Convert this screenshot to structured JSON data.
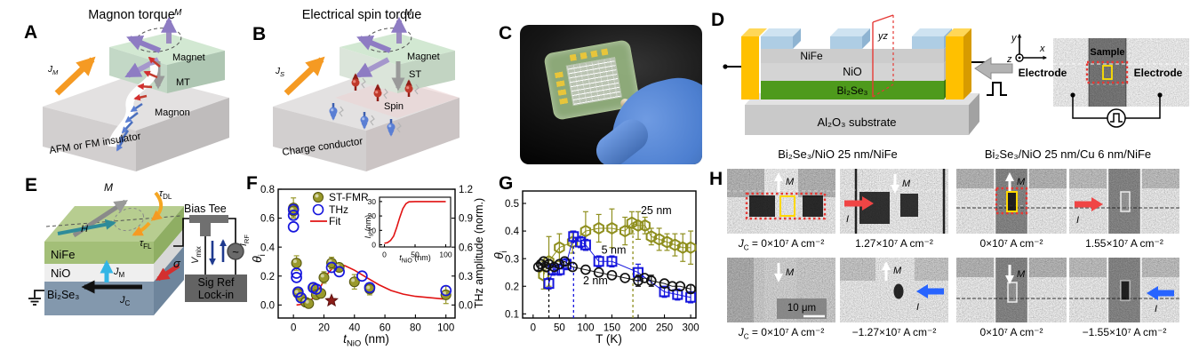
{
  "a": {
    "label": "A",
    "title": "Magnon torque",
    "current": {
      "main": "J",
      "sub": "M"
    },
    "m": "M",
    "magnet": "Magnet",
    "torque": "MT",
    "carrier": "Magnon",
    "base": "AFM or FM insulator"
  },
  "b": {
    "label": "B",
    "title": "Electrical spin torque",
    "current": {
      "main": "J",
      "sub": "S"
    },
    "m": "M",
    "magnet": "Magnet",
    "torque": "ST",
    "carrier": "Spin",
    "base": "Charge conductor"
  },
  "c": {
    "label": "C"
  },
  "d": {
    "label": "D",
    "nife": "NiFe",
    "nio": "NiO",
    "bise": "Bi₂Se₃",
    "substrate": "Al₂O₃ substrate",
    "plane": "yz",
    "axes": {
      "x": "x",
      "y": "y",
      "z": "z"
    },
    "sem": {
      "sample": "Sample",
      "electrode_left": "Electrode",
      "electrode_right": "Electrode"
    }
  },
  "e": {
    "label": "E",
    "layers": [
      "NiFe",
      "NiO",
      "Bi₂Se₃"
    ],
    "m": "M",
    "h": "H",
    "tau_dl": {
      "main": "τ",
      "sub": "DL"
    },
    "tau_fl": {
      "main": "τ",
      "sub": "FL"
    },
    "jm": {
      "main": "J",
      "sub": "M"
    },
    "jc": {
      "main": "J",
      "sub": "C"
    },
    "sigma": "σ",
    "bias_tee": "Bias Tee",
    "vmix": {
      "main": "V",
      "sub": "mix"
    },
    "irf": {
      "main": "I",
      "sub": "RF"
    },
    "lockin_line1": "Sig Ref",
    "lockin_line2": "Lock-in",
    "ac_source": "~"
  },
  "f": {
    "label": "F",
    "xlabel": {
      "main": "t",
      "sub": "NiO",
      "unit": " (nm)"
    },
    "ylabel": {
      "main": "θ",
      "sub": "i"
    },
    "y2label": "THz amplitude (norm.)",
    "inset": {
      "xlabel": {
        "main": "t",
        "sub": "NiO",
        "unit": " (nm)"
      },
      "ylabel": {
        "main": "l",
        "sub": "s",
        "unit": " (nm)"
      }
    }
  },
  "g": {
    "label": "G",
    "xlabel": "T (K)",
    "ylabel": {
      "main": "θ",
      "sub": "i"
    }
  },
  "h": {
    "label": "H",
    "m_label": "M",
    "i_label": "I",
    "scalebar": "10 μm",
    "left": {
      "header": "Bi₂Se₃/NiO 25 nm/NiFe",
      "captions": [
        {
          "prefix_main": "J",
          "prefix_sub": "C",
          "eq": " = ",
          "value": "0×10⁷ A cm⁻²"
        },
        {
          "value": "1.27×10⁷ A cm⁻²"
        },
        {
          "prefix_main": "J",
          "prefix_sub": "C",
          "eq": " = ",
          "value": "0×10⁷ A cm⁻²"
        },
        {
          "value": "−1.27×10⁷ A cm⁻²"
        }
      ]
    },
    "right": {
      "header": "Bi₂Se₃/NiO 25 nm/Cu 6 nm/NiFe",
      "captions": [
        {
          "value": "0×10⁷ A cm⁻²"
        },
        {
          "value": "1.55×10⁷ A cm⁻²"
        },
        {
          "value": "0×10⁷ A cm⁻²"
        },
        {
          "value": "−1.55×10⁷ A cm⁻²"
        }
      ]
    }
  },
  "chart_data": [
    {
      "id": "F",
      "type": "scatter",
      "title": "",
      "xlabel": "t_NiO (nm)",
      "ylabel": "theta_i",
      "y2label": "THz amplitude (norm.)",
      "xlim": [
        -10,
        106
      ],
      "ylim": [
        -0.09,
        0.8
      ],
      "y2lim": [
        -0.135,
        1.2
      ],
      "xticks": [
        0,
        20,
        40,
        60,
        80,
        100
      ],
      "yticks": [
        0.0,
        0.2,
        0.4,
        0.6,
        0.8
      ],
      "y2ticks": [
        0.0,
        0.3,
        0.6,
        0.9,
        1.2
      ],
      "legend_position": "top-left",
      "grid": false,
      "series": [
        {
          "name": "ST-FMR",
          "marker": "circle-filled",
          "color": "#99992b",
          "points": [
            [
              0,
              0.67,
              0.07
            ],
            [
              0,
              0.65,
              0.04
            ],
            [
              2,
              0.29,
              0.05
            ],
            [
              3,
              0.08,
              0.03
            ],
            [
              5,
              0.05,
              0.02
            ],
            [
              8,
              0.02,
              0.02
            ],
            [
              10,
              0.01,
              0.02
            ],
            [
              13,
              0.12,
              0.03
            ],
            [
              15,
              0.07,
              0.02
            ],
            [
              18,
              0.08,
              0.03
            ],
            [
              20,
              0.19,
              0.04
            ],
            [
              25,
              0.29,
              0.04
            ],
            [
              30,
              0.26,
              0.03
            ],
            [
              40,
              0.16,
              0.05
            ],
            [
              50,
              0.11,
              0.04
            ],
            [
              100,
              0.07,
              0.06
            ]
          ]
        },
        {
          "name": "THz",
          "marker": "circle-open",
          "color": "#1616dd",
          "points": [
            [
              0,
              0.66
            ],
            [
              0,
              0.62
            ],
            [
              0,
              0.54
            ],
            [
              2,
              0.22
            ],
            [
              2,
              0.19
            ],
            [
              3,
              0.09
            ],
            [
              5,
              0.05
            ],
            [
              13,
              0.12
            ],
            [
              15,
              0.11
            ],
            [
              25,
              0.26
            ],
            [
              30,
              0.23
            ],
            [
              45,
              0.2
            ],
            [
              50,
              0.12
            ],
            [
              100,
              0.1
            ]
          ]
        },
        {
          "name": "Fit",
          "marker": "line",
          "color": "#e11212",
          "points": [
            [
              2,
              0.0
            ],
            [
              6,
              0.005
            ],
            [
              10,
              0.02
            ],
            [
              14,
              0.06
            ],
            [
              18,
              0.13
            ],
            [
              22,
              0.21
            ],
            [
              26,
              0.26
            ],
            [
              30,
              0.28
            ],
            [
              34,
              0.27
            ],
            [
              40,
              0.24
            ],
            [
              48,
              0.19
            ],
            [
              56,
              0.14
            ],
            [
              64,
              0.1
            ],
            [
              72,
              0.075
            ],
            [
              80,
              0.06
            ],
            [
              90,
              0.05
            ],
            [
              100,
              0.04
            ]
          ]
        },
        {
          "name": "star",
          "marker": "star",
          "color": "#8c1d18",
          "points": [
            [
              25,
              0.03
            ]
          ]
        }
      ]
    },
    {
      "id": "F-inset",
      "type": "line",
      "xlabel": "t_NiO (nm)",
      "ylabel": "l_s (nm)",
      "xlim": [
        -8,
        108
      ],
      "ylim": [
        -1.5,
        33
      ],
      "xticks": [
        0,
        50,
        100
      ],
      "yticks": [
        0,
        10,
        20,
        30
      ],
      "grid": false,
      "series": [
        {
          "name": "spin diffusion length",
          "marker": "line",
          "color": "#e11212",
          "points": [
            [
              0,
              1
            ],
            [
              5,
              1.5
            ],
            [
              10,
              3
            ],
            [
              15,
              6
            ],
            [
              20,
              12
            ],
            [
              25,
              19
            ],
            [
              30,
              25
            ],
            [
              35,
              28.5
            ],
            [
              40,
              29.8
            ],
            [
              50,
              30
            ],
            [
              60,
              30
            ],
            [
              80,
              30
            ],
            [
              100,
              30
            ]
          ]
        }
      ]
    },
    {
      "id": "G",
      "type": "scatter-line",
      "xlabel": "T (K)",
      "ylabel": "theta_i",
      "xlim": [
        -20,
        310
      ],
      "ylim": [
        0.085,
        0.545
      ],
      "xticks": [
        0,
        50,
        100,
        150,
        200,
        250,
        300
      ],
      "yticks": [
        0.1,
        0.2,
        0.3,
        0.4,
        0.5
      ],
      "grid": false,
      "series": [
        {
          "name": "25 nm",
          "marker": "hexagon-open",
          "color": "#8f8f1e",
          "label_xy": [
            205,
            0.462
          ],
          "dash_x": 190,
          "dash_y": 0.43,
          "points": [
            [
              20,
              0.24,
              0.05
            ],
            [
              30,
              0.29,
              0.09
            ],
            [
              50,
              0.34,
              0.05
            ],
            [
              75,
              0.36,
              0.04
            ],
            [
              100,
              0.4,
              0.07
            ],
            [
              125,
              0.41,
              0.05
            ],
            [
              150,
              0.41,
              0.07
            ],
            [
              175,
              0.4,
              0.05
            ],
            [
              188,
              0.43,
              0.04
            ],
            [
              200,
              0.42,
              0.05
            ],
            [
              213,
              0.42,
              0.03
            ],
            [
              225,
              0.38,
              0.03
            ],
            [
              240,
              0.37,
              0.04
            ],
            [
              255,
              0.36,
              0.03
            ],
            [
              270,
              0.35,
              0.04
            ],
            [
              285,
              0.34,
              0.05
            ],
            [
              300,
              0.34,
              0.06
            ]
          ]
        },
        {
          "name": "5 nm",
          "marker": "square-open",
          "color": "#1616dd",
          "label_xy": [
            130,
            0.318
          ],
          "dash_x": 77,
          "dash_y": 0.38,
          "points": [
            [
              30,
              0.21,
              0.02
            ],
            [
              38,
              0.26,
              0.02
            ],
            [
              50,
              0.26,
              0.02
            ],
            [
              63,
              0.28,
              0.02
            ],
            [
              77,
              0.38,
              0.02
            ],
            [
              90,
              0.36,
              0.02
            ],
            [
              100,
              0.35,
              0.02
            ],
            [
              125,
              0.29,
              0.02
            ],
            [
              150,
              0.29,
              0.02
            ],
            [
              200,
              0.25,
              0.03
            ],
            [
              250,
              0.18,
              0.02
            ],
            [
              275,
              0.17,
              0.02
            ],
            [
              300,
              0.16,
              0.02
            ]
          ]
        },
        {
          "name": "2 nm",
          "marker": "circle-open",
          "color": "#111111",
          "label_xy": [
            95,
            0.207
          ],
          "dash_x": 30,
          "dash_y": 0.28,
          "points": [
            [
              10,
              0.27,
              0.012
            ],
            [
              15,
              0.28
            ],
            [
              20,
              0.29
            ],
            [
              25,
              0.27
            ],
            [
              30,
              0.28
            ],
            [
              40,
              0.27
            ],
            [
              50,
              0.28
            ],
            [
              60,
              0.29
            ],
            [
              75,
              0.27
            ],
            [
              100,
              0.26
            ],
            [
              125,
              0.25
            ],
            [
              150,
              0.24
            ],
            [
              175,
              0.23
            ],
            [
              200,
              0.22,
              0.02
            ],
            [
              212,
              0.23
            ],
            [
              225,
              0.22,
              0.02
            ],
            [
              250,
              0.21
            ],
            [
              265,
              0.2
            ],
            [
              280,
              0.2
            ],
            [
              300,
              0.19,
              0.015
            ]
          ]
        }
      ]
    }
  ]
}
